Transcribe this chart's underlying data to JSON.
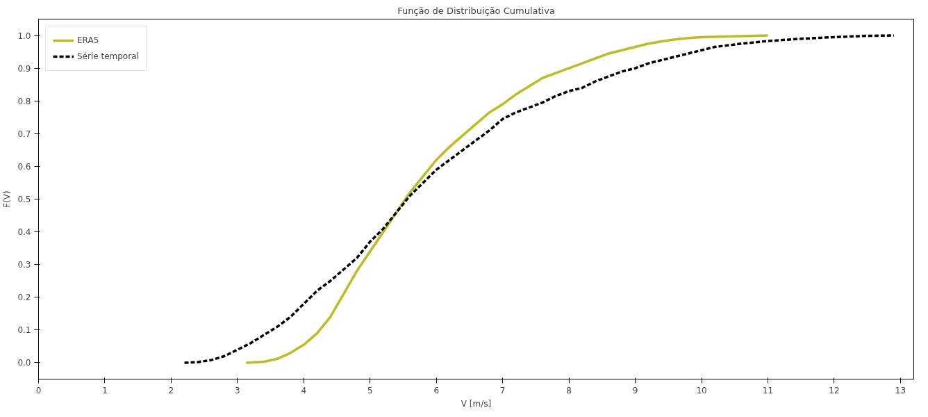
{
  "chart_data": {
    "type": "line",
    "title": "Função de Distribuição Cumulativa",
    "xlabel": "V [m/s]",
    "ylabel": "F(V)",
    "xlim": [
      0,
      13.2
    ],
    "ylim": [
      -0.05,
      1.05
    ],
    "xticks": [
      0,
      1,
      2,
      3,
      4,
      5,
      6,
      7,
      8,
      9,
      10,
      11,
      12,
      13
    ],
    "yticks": [
      {
        "value": 0,
        "label": "0.0"
      },
      {
        "value": 0.1,
        "label": "0.1"
      },
      {
        "value": 0.2,
        "label": "0.2"
      },
      {
        "value": 0.3,
        "label": "0.3"
      },
      {
        "value": 0.4,
        "label": "0.4"
      },
      {
        "value": 0.5,
        "label": "0.5"
      },
      {
        "value": 0.6,
        "label": "0.6"
      },
      {
        "value": 0.7,
        "label": "0.7"
      },
      {
        "value": 0.8,
        "label": "0.8"
      },
      {
        "value": 0.9,
        "label": "0.9"
      },
      {
        "value": 1,
        "label": "1.0"
      }
    ],
    "grid": false,
    "legend": "top left",
    "series": [
      {
        "name": "ERA5",
        "color": "#bcbd22",
        "line_style": "solid",
        "x": [
          3.13,
          3.4,
          3.6,
          3.8,
          4.0,
          4.2,
          4.4,
          4.6,
          4.8,
          5.0,
          5.2,
          5.4,
          5.6,
          5.8,
          6.0,
          6.2,
          6.4,
          6.6,
          6.8,
          7.0,
          7.2,
          7.4,
          7.6,
          7.8,
          8.0,
          8.2,
          8.4,
          8.6,
          8.8,
          9.0,
          9.2,
          9.4,
          9.6,
          9.8,
          10.0,
          10.4,
          11.0
        ],
        "values": [
          0.0,
          0.003,
          0.012,
          0.03,
          0.055,
          0.09,
          0.14,
          0.21,
          0.28,
          0.34,
          0.4,
          0.46,
          0.52,
          0.57,
          0.62,
          0.66,
          0.695,
          0.73,
          0.765,
          0.79,
          0.82,
          0.845,
          0.87,
          0.885,
          0.9,
          0.915,
          0.93,
          0.945,
          0.955,
          0.965,
          0.975,
          0.982,
          0.988,
          0.992,
          0.995,
          0.997,
          1.0
        ]
      },
      {
        "name": "Série temporal",
        "color": "#000000",
        "line_style": "dashed",
        "x": [
          2.2,
          2.4,
          2.6,
          2.8,
          3.0,
          3.2,
          3.4,
          3.6,
          3.8,
          4.0,
          4.2,
          4.4,
          4.6,
          4.8,
          5.0,
          5.2,
          5.4,
          5.6,
          5.8,
          6.0,
          6.2,
          6.4,
          6.6,
          6.8,
          7.0,
          7.2,
          7.4,
          7.6,
          7.8,
          8.0,
          8.2,
          8.4,
          8.6,
          8.8,
          9.0,
          9.2,
          9.4,
          9.6,
          9.8,
          10.0,
          10.2,
          10.6,
          11.0,
          11.5,
          12.0,
          12.5,
          12.9
        ],
        "values": [
          0.0,
          0.002,
          0.008,
          0.02,
          0.04,
          0.06,
          0.085,
          0.11,
          0.14,
          0.18,
          0.22,
          0.25,
          0.285,
          0.32,
          0.37,
          0.41,
          0.46,
          0.51,
          0.55,
          0.59,
          0.62,
          0.65,
          0.68,
          0.71,
          0.745,
          0.765,
          0.78,
          0.795,
          0.815,
          0.83,
          0.84,
          0.86,
          0.875,
          0.89,
          0.9,
          0.915,
          0.925,
          0.935,
          0.945,
          0.955,
          0.965,
          0.975,
          0.983,
          0.99,
          0.995,
          0.999,
          1.0
        ]
      }
    ]
  }
}
